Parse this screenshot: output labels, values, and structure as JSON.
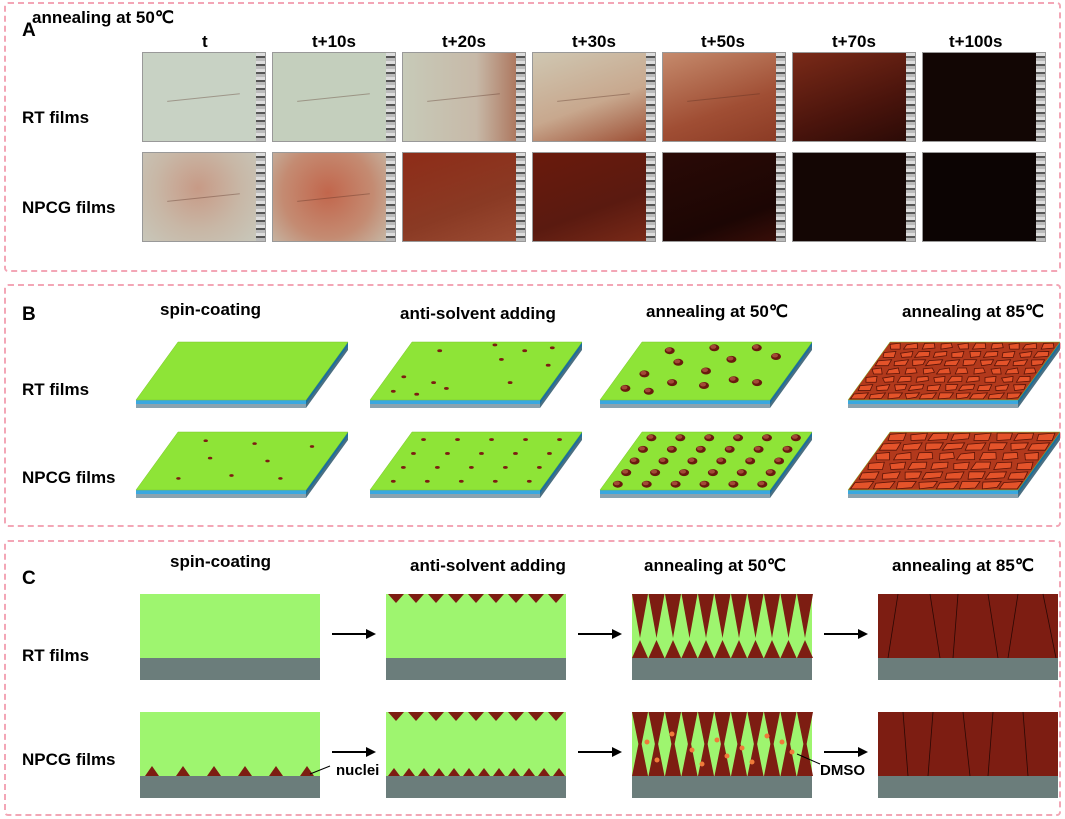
{
  "panelA": {
    "letter": "A",
    "title": "annealing at 50℃",
    "times": [
      "t",
      "t+10s",
      "t+20s",
      "t+30s",
      "t+50s",
      "t+70s",
      "t+100s"
    ],
    "rows": [
      "RT films",
      "NPCG films"
    ]
  },
  "panelB": {
    "letter": "B",
    "steps": [
      "spin-coating",
      "anti-solvent adding",
      "annealing at 50℃",
      "annealing at 85℃"
    ],
    "rows": [
      "RT films",
      "NPCG films"
    ]
  },
  "panelC": {
    "letter": "C",
    "steps": [
      "spin-coating",
      "anti-solvent adding",
      "annealing at 50℃",
      "annealing at 85℃"
    ],
    "rows": [
      "RT films",
      "NPCG films"
    ],
    "nuclei_label": "nuclei",
    "dmso_label": "DMSO"
  },
  "colors": {
    "film_green": "#9ef56f",
    "film_green_3d": "#8ee437",
    "substrate": "#6b7d7b",
    "perovskite": "#7d1d12",
    "grain": "#e4532a",
    "dmso_dot": "#f07a3a",
    "border": "#f3a6b6",
    "blue_layer": "#3aa8e0"
  }
}
